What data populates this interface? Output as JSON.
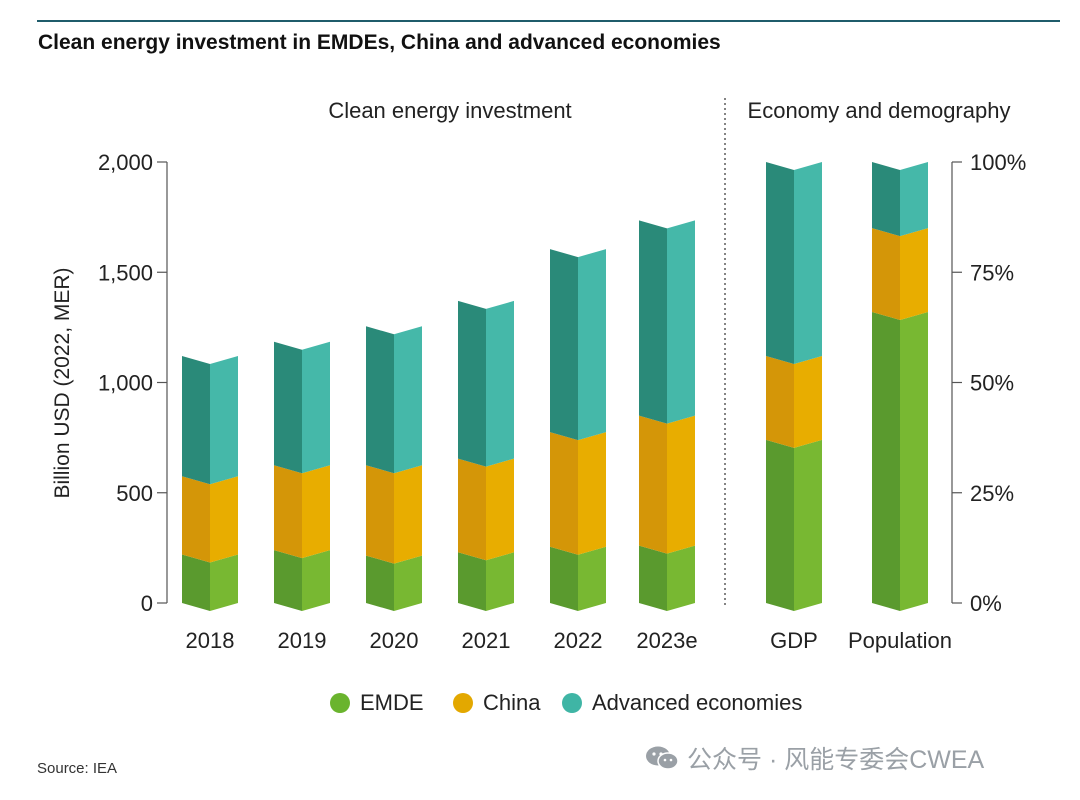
{
  "title": "Clean energy investment in EMDEs, China and advanced economies",
  "source": "Source: IEA",
  "watermark": "公众号 · 风能专委会CWEA",
  "colors": {
    "emde_front": "#5a9a2e",
    "emde_side": "#78b832",
    "china_front": "#d49608",
    "china_side": "#e8ad00",
    "adv_front": "#2a8a79",
    "adv_side": "#45b8a9",
    "legend_emde": "#6ab42e",
    "legend_china": "#e3a800",
    "legend_adv": "#3fb5a5",
    "rule": "#1f5c6b"
  },
  "chart_data": [
    {
      "type": "bar",
      "stacked": true,
      "panel_title": "Clean energy investment",
      "ylabel": "Billion USD (2022, MER)",
      "ylim": [
        0,
        2000
      ],
      "yticks": [
        0,
        500,
        1000,
        1500,
        2000
      ],
      "ytick_labels": [
        "0",
        "500",
        "1,000",
        "1,500",
        "2,000"
      ],
      "categories": [
        "2018",
        "2019",
        "2020",
        "2021",
        "2022",
        "2023e"
      ],
      "series": [
        {
          "name": "EMDE",
          "values": [
            220,
            240,
            215,
            230,
            255,
            260
          ]
        },
        {
          "name": "China",
          "values": [
            355,
            385,
            410,
            425,
            520,
            590
          ]
        },
        {
          "name": "Advanced economies",
          "values": [
            545,
            560,
            630,
            715,
            830,
            885
          ]
        }
      ]
    },
    {
      "type": "bar",
      "stacked": true,
      "panel_title": "Economy and demography",
      "ylim": [
        0,
        100
      ],
      "yticks": [
        0,
        25,
        50,
        75,
        100
      ],
      "ytick_labels": [
        "0%",
        "25%",
        "50%",
        "75%",
        "100%"
      ],
      "categories": [
        "GDP",
        "Population"
      ],
      "series": [
        {
          "name": "EMDE",
          "values": [
            37,
            66
          ]
        },
        {
          "name": "China",
          "values": [
            19,
            19
          ]
        },
        {
          "name": "Advanced economies",
          "values": [
            44,
            15
          ]
        }
      ]
    }
  ],
  "legend": [
    {
      "label": "EMDE",
      "color": "#6ab42e"
    },
    {
      "label": "China",
      "color": "#e3a800"
    },
    {
      "label": "Advanced economies",
      "color": "#3fb5a5"
    }
  ]
}
